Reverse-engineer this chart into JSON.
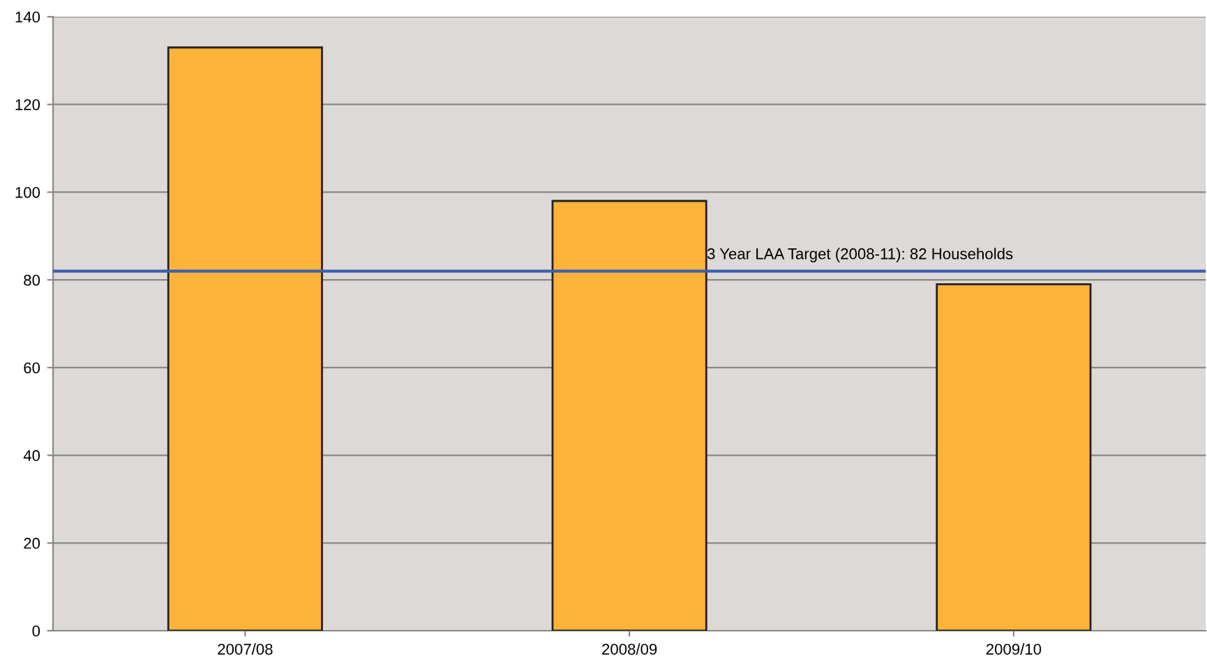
{
  "chart_data": {
    "type": "bar",
    "categories": [
      "2007/08",
      "2008/09",
      "2009/10"
    ],
    "values": [
      133,
      98,
      79
    ],
    "color": "#fbb33a",
    "ylim": [
      0,
      140
    ],
    "yticks": [
      0,
      20,
      40,
      60,
      80,
      100,
      120,
      140
    ],
    "grid": "y",
    "ref_lines": [
      {
        "axis": "y",
        "value": 82,
        "label": "3 Year LAA Target (2008-11): 82 Households",
        "color": "#3a5fb0",
        "line_style": "solid"
      }
    ]
  }
}
